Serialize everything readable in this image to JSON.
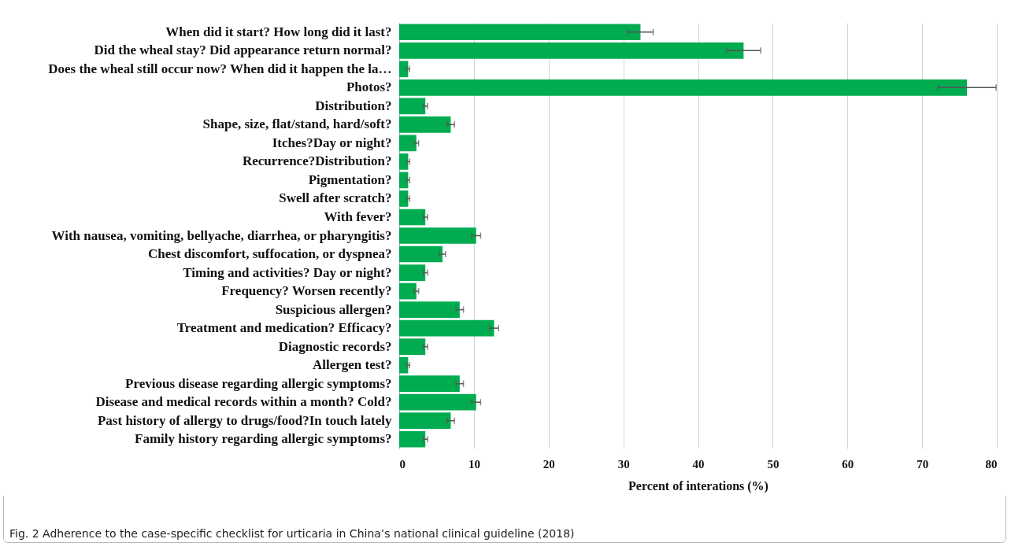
{
  "chart_data": {
    "type": "bar",
    "orientation": "horizontal",
    "categories": [
      "When did it start? How long did it last?",
      "Did the wheal stay? Did appearance return normal?",
      "Does the wheal still occur now? When did it happen the la…",
      "Photos?",
      "Distribution?",
      "Shape, size, flat/stand, hard/soft?",
      "Itches?Day or night?",
      "Recurrence?Distribution?",
      "Pigmentation?",
      "Swell after scratch?",
      "With fever?",
      "With nausea, vomiting, bellyache, diarrhea, or pharyngitis?",
      "Chest discomfort, suffocation, or dyspnea?",
      "Timing and activities? Day or night?",
      "Frequency? Worsen recently?",
      "Suspicious allergen?",
      "Treatment and medication? Efficacy?",
      "Diagnostic records?",
      "Allergen test?",
      "Previous disease regarding allergic symptoms?",
      "Disease and medical records within a month? Cold?",
      "Past history of allergy to drugs/food?In touch lately",
      "Family history regarding allergic symptoms?"
    ],
    "values": [
      32.3,
      46.1,
      1.2,
      76,
      3.5,
      6.9,
      2.3,
      1.2,
      1.2,
      1.2,
      3.5,
      10.3,
      5.8,
      3.5,
      2.3,
      8.1,
      12.7,
      3.5,
      1.2,
      8.1,
      10.3,
      6.9,
      3.5
    ],
    "errors": [
      1.7,
      2.3,
      0.2,
      3.9,
      0.3,
      0.5,
      0.3,
      0.2,
      0.2,
      0.2,
      0.3,
      0.6,
      0.4,
      0.3,
      0.3,
      0.5,
      0.6,
      0.3,
      0.2,
      0.5,
      0.6,
      0.5,
      0.3
    ],
    "color": "#00ac4f",
    "xlim": [
      0,
      80
    ],
    "xticks": [
      0,
      10,
      20,
      30,
      40,
      50,
      60,
      70,
      80
    ],
    "xlabel": "Percent of interations (%)",
    "grid": "x",
    "annotations": [
      "Fig. 2  Adherence to the case-specific checklist for urticaria in China’s national clinical guideline (2018)"
    ]
  }
}
